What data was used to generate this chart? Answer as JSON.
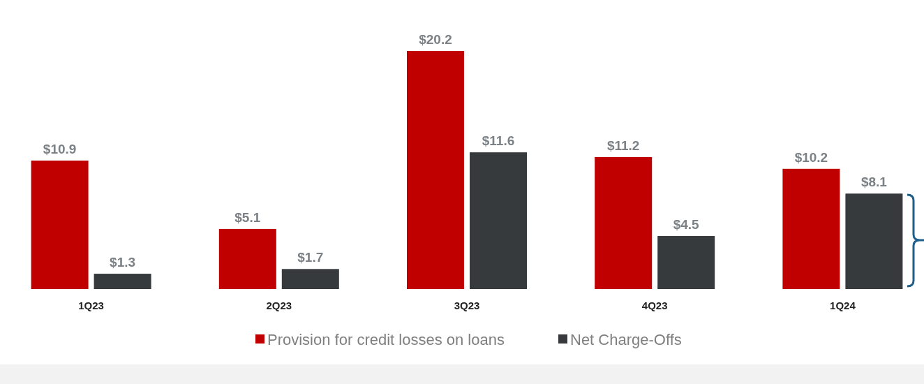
{
  "chart_data": {
    "type": "bar",
    "categories": [
      "1Q23",
      "2Q23",
      "3Q23",
      "4Q23",
      "1Q24"
    ],
    "series": [
      {
        "name": "Provision for credit losses on loans",
        "color": "#c00000",
        "values": [
          10.9,
          5.1,
          20.2,
          11.2,
          10.2
        ],
        "value_labels": [
          "$10.9",
          "$5.1",
          "$20.2",
          "$11.2",
          "$10.2"
        ]
      },
      {
        "name": "Net Charge-Offs",
        "color": "#363a3d",
        "values": [
          1.3,
          1.7,
          11.6,
          4.5,
          8.1
        ],
        "value_labels": [
          "$1.3",
          "$1.7",
          "$11.6",
          "$4.5",
          "$8.1"
        ]
      }
    ],
    "legend": "bottom"
  }
}
